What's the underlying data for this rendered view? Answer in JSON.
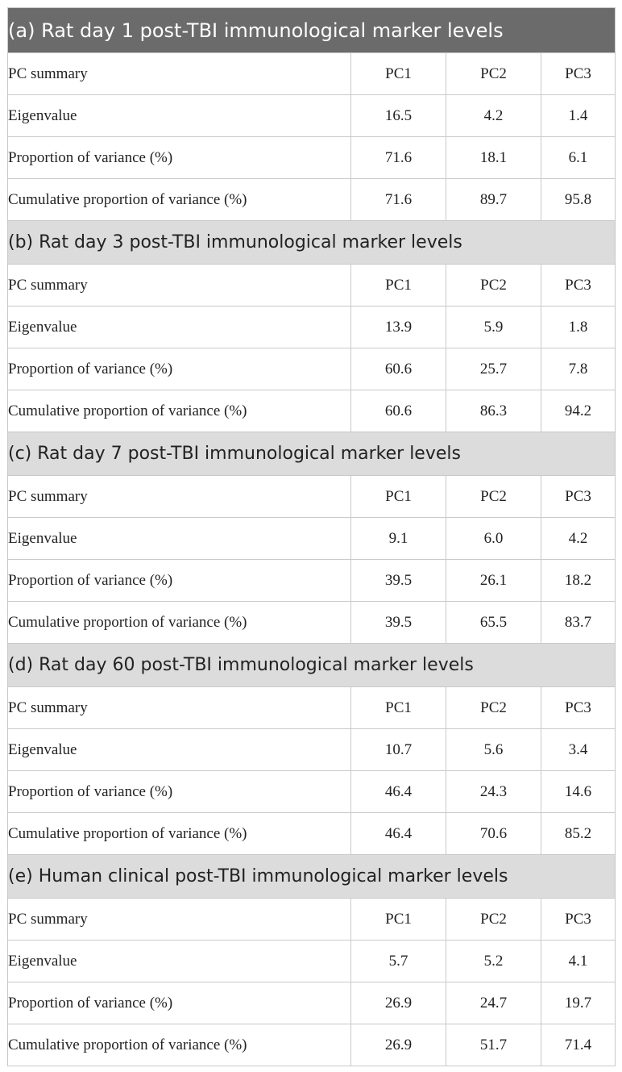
{
  "sections": [
    {
      "title": "(a) Rat day 1 post-TBI immunological marker levels",
      "header": {
        "label": "PC summary",
        "pc1": "PC1",
        "pc2": "PC2",
        "pc3": "PC3"
      },
      "rows": [
        {
          "label": "Eigenvalue",
          "pc1": "16.5",
          "pc2": "4.2",
          "pc3": "1.4"
        },
        {
          "label": "Proportion of variance (%)",
          "pc1": "71.6",
          "pc2": "18.1",
          "pc3": "6.1"
        },
        {
          "label": "Cumulative proportion of variance (%)",
          "pc1": "71.6",
          "pc2": "89.7",
          "pc3": "95.8"
        }
      ]
    },
    {
      "title": "(b) Rat day 3 post-TBI immunological marker levels",
      "header": {
        "label": "PC summary",
        "pc1": "PC1",
        "pc2": "PC2",
        "pc3": "PC3"
      },
      "rows": [
        {
          "label": "Eigenvalue",
          "pc1": "13.9",
          "pc2": "5.9",
          "pc3": "1.8"
        },
        {
          "label": "Proportion of variance (%)",
          "pc1": "60.6",
          "pc2": "25.7",
          "pc3": "7.8"
        },
        {
          "label": "Cumulative proportion of variance (%)",
          "pc1": "60.6",
          "pc2": "86.3",
          "pc3": "94.2"
        }
      ]
    },
    {
      "title": "(c) Rat day 7 post-TBI immunological marker levels",
      "header": {
        "label": "PC summary",
        "pc1": "PC1",
        "pc2": "PC2",
        "pc3": "PC3"
      },
      "rows": [
        {
          "label": "Eigenvalue",
          "pc1": "9.1",
          "pc2": "6.0",
          "pc3": "4.2"
        },
        {
          "label": "Proportion of variance (%)",
          "pc1": "39.5",
          "pc2": "26.1",
          "pc3": "18.2"
        },
        {
          "label": "Cumulative proportion of variance (%)",
          "pc1": "39.5",
          "pc2": "65.5",
          "pc3": "83.7"
        }
      ]
    },
    {
      "title": "(d) Rat day 60 post-TBI immunological marker levels",
      "header": {
        "label": "PC summary",
        "pc1": "PC1",
        "pc2": "PC2",
        "pc3": "PC3"
      },
      "rows": [
        {
          "label": "Eigenvalue",
          "pc1": "10.7",
          "pc2": "5.6",
          "pc3": "3.4"
        },
        {
          "label": "Proportion of variance (%)",
          "pc1": "46.4",
          "pc2": "24.3",
          "pc3": "14.6"
        },
        {
          "label": "Cumulative proportion of variance (%)",
          "pc1": "46.4",
          "pc2": "70.6",
          "pc3": "85.2"
        }
      ]
    },
    {
      "title": "(e) Human clinical post-TBI immunological marker levels",
      "header": {
        "label": "PC summary",
        "pc1": "PC1",
        "pc2": "PC2",
        "pc3": "PC3"
      },
      "rows": [
        {
          "label": "Eigenvalue",
          "pc1": "5.7",
          "pc2": "5.2",
          "pc3": "4.1"
        },
        {
          "label": "Proportion of variance (%)",
          "pc1": "26.9",
          "pc2": "24.7",
          "pc3": "19.7"
        },
        {
          "label": "Cumulative proportion of variance (%)",
          "pc1": "26.9",
          "pc2": "51.7",
          "pc3": "71.4"
        }
      ]
    }
  ]
}
